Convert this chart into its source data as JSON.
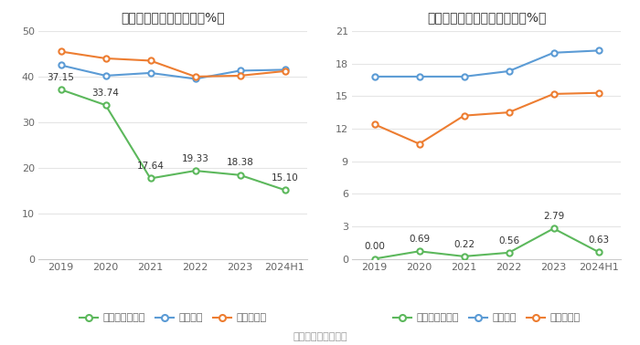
{
  "years": [
    "2019",
    "2020",
    "2021",
    "2022",
    "2023",
    "2024H1"
  ],
  "chart1": {
    "title": "近年来资产负债率情况（%）",
    "company": [
      37.15,
      33.74,
      17.64,
      19.33,
      18.38,
      15.1
    ],
    "industry_avg": [
      42.5,
      40.2,
      40.8,
      39.5,
      41.3,
      41.5
    ],
    "industry_median": [
      45.5,
      44.0,
      43.5,
      40.0,
      40.2,
      41.2
    ],
    "ylim": [
      0,
      50
    ],
    "yticks": [
      0,
      10,
      20,
      30,
      40,
      50
    ],
    "legend": [
      "公司资产负债率",
      "行业均値",
      "行业中位数"
    ]
  },
  "chart2": {
    "title": "近年来有息资产负债率情况（%）",
    "company": [
      0.0,
      0.69,
      0.22,
      0.56,
      2.79,
      0.63
    ],
    "industry_avg": [
      16.8,
      16.8,
      16.8,
      17.3,
      19.0,
      19.2
    ],
    "industry_median": [
      12.4,
      10.6,
      13.2,
      13.5,
      15.2,
      15.3
    ],
    "ylim": [
      0,
      21
    ],
    "yticks": [
      0,
      3,
      6,
      9,
      12,
      15,
      18,
      21
    ],
    "legend": [
      "有息资产负债率",
      "行业均値",
      "行业中位数"
    ]
  },
  "colors": {
    "company": "#5cb85c",
    "industry_avg": "#5b9bd5",
    "industry_median": "#ed7d31"
  },
  "source_text": "数据来源：恒生聚源",
  "bg_color": "#ffffff",
  "grid_color": "#e0e0e0"
}
